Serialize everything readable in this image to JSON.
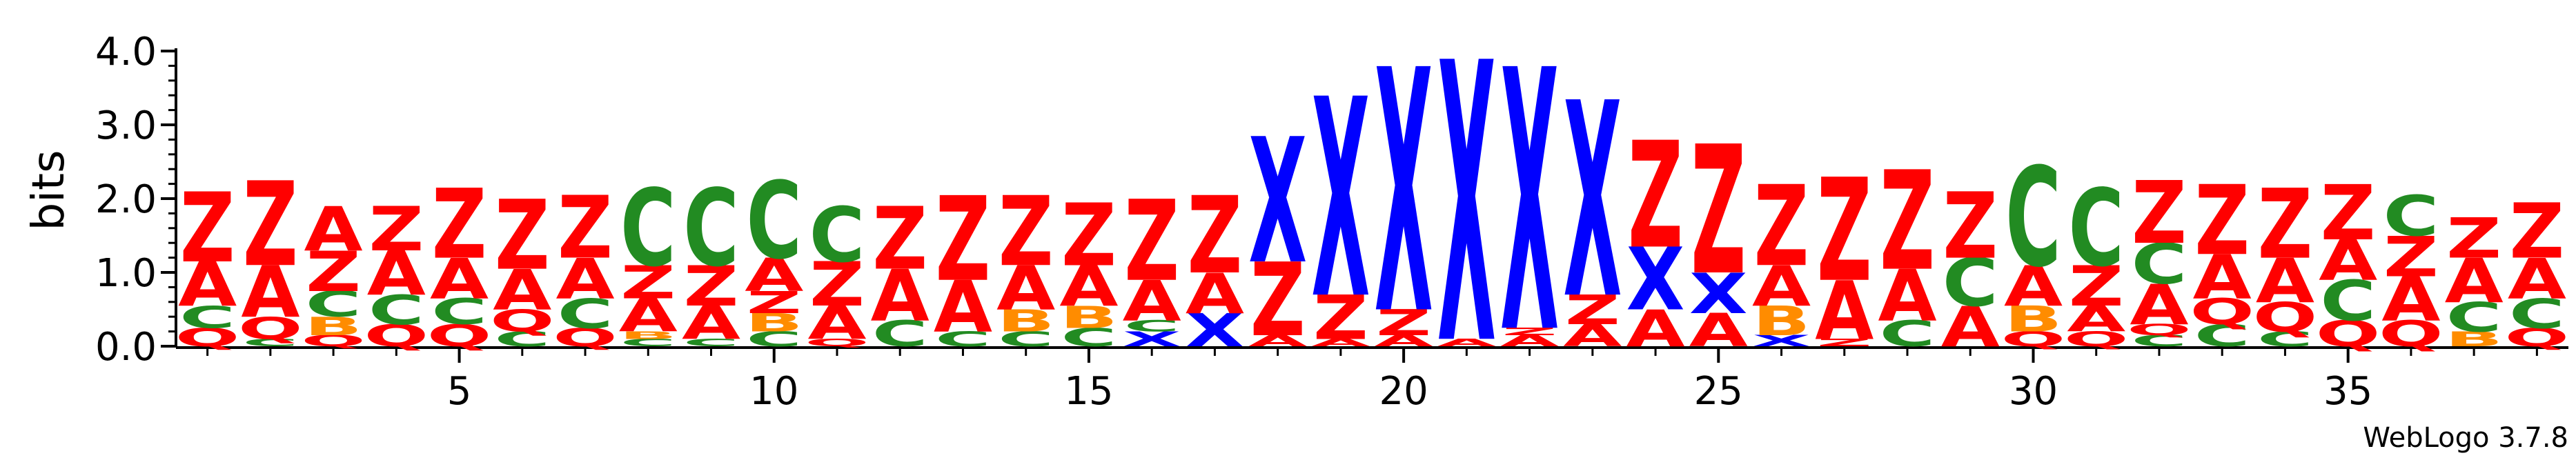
{
  "chart_data": {
    "type": "sequence-logo",
    "ylabel": "bits",
    "ylim": [
      0,
      4
    ],
    "yticks": [
      "0.0",
      "1.0",
      "2.0",
      "3.0",
      "4.0"
    ],
    "xlim": [
      1,
      38
    ],
    "xticks": [
      "5",
      "10",
      "15",
      "20",
      "25",
      "30",
      "35"
    ],
    "credit": "WebLogo 3.7.8",
    "colors": {
      "Z": "#ff0000",
      "A": "#ff0000",
      "Q": "#ff0000",
      "X": "#0000ff",
      "C": "#228b22",
      "B": "#ff8c00"
    },
    "positions": [
      {
        "pos": 1,
        "stack": [
          [
            "Q",
            0.25
          ],
          [
            "C",
            0.3
          ],
          [
            "A",
            0.6
          ],
          [
            "Z",
            0.95
          ]
        ]
      },
      {
        "pos": 2,
        "stack": [
          [
            "C",
            0.1
          ],
          [
            "Q",
            0.3
          ],
          [
            "A",
            0.7
          ],
          [
            "Z",
            1.15
          ]
        ]
      },
      {
        "pos": 3,
        "stack": [
          [
            "Q",
            0.15
          ],
          [
            "B",
            0.25
          ],
          [
            "C",
            0.35
          ],
          [
            "Z",
            0.55
          ],
          [
            "A",
            0.6
          ]
        ]
      },
      {
        "pos": 4,
        "stack": [
          [
            "Q",
            0.3
          ],
          [
            "C",
            0.4
          ],
          [
            "A",
            0.6
          ],
          [
            "Z",
            0.6
          ]
        ]
      },
      {
        "pos": 5,
        "stack": [
          [
            "Q",
            0.3
          ],
          [
            "C",
            0.35
          ],
          [
            "A",
            0.55
          ],
          [
            "Z",
            0.95
          ]
        ]
      },
      {
        "pos": 6,
        "stack": [
          [
            "C",
            0.2
          ],
          [
            "Q",
            0.3
          ],
          [
            "A",
            0.55
          ],
          [
            "Z",
            0.95
          ]
        ]
      },
      {
        "pos": 7,
        "stack": [
          [
            "Q",
            0.25
          ],
          [
            "C",
            0.4
          ],
          [
            "A",
            0.55
          ],
          [
            "Z",
            0.85
          ]
        ]
      },
      {
        "pos": 8,
        "stack": [
          [
            "C",
            0.1
          ],
          [
            "B",
            0.1
          ],
          [
            "A",
            0.45
          ],
          [
            "Z",
            0.45
          ],
          [
            "C",
            1.05
          ]
        ]
      },
      {
        "pos": 9,
        "stack": [
          [
            "C",
            0.1
          ],
          [
            "A",
            0.45
          ],
          [
            "Z",
            0.55
          ],
          [
            "C",
            1.05
          ]
        ]
      },
      {
        "pos": 10,
        "stack": [
          [
            "C",
            0.2
          ],
          [
            "B",
            0.25
          ],
          [
            "Z",
            0.3
          ],
          [
            "A",
            0.45
          ],
          [
            "C",
            1.05
          ]
        ]
      },
      {
        "pos": 11,
        "stack": [
          [
            "Q",
            0.1
          ],
          [
            "A",
            0.45
          ],
          [
            "Z",
            0.6
          ],
          [
            "C",
            0.75
          ]
        ]
      },
      {
        "pos": 12,
        "stack": [
          [
            "C",
            0.35
          ],
          [
            "A",
            0.7
          ],
          [
            "Z",
            0.85
          ]
        ]
      },
      {
        "pos": 13,
        "stack": [
          [
            "C",
            0.2
          ],
          [
            "A",
            0.7
          ],
          [
            "Z",
            1.15
          ]
        ]
      },
      {
        "pos": 14,
        "stack": [
          [
            "C",
            0.2
          ],
          [
            "B",
            0.3
          ],
          [
            "A",
            0.6
          ],
          [
            "Z",
            0.95
          ]
        ]
      },
      {
        "pos": 15,
        "stack": [
          [
            "C",
            0.25
          ],
          [
            "B",
            0.3
          ],
          [
            "A",
            0.55
          ],
          [
            "Z",
            0.85
          ]
        ]
      },
      {
        "pos": 16,
        "stack": [
          [
            "X",
            0.2
          ],
          [
            "C",
            0.15
          ],
          [
            "A",
            0.55
          ],
          [
            "Z",
            1.1
          ]
        ]
      },
      {
        "pos": 17,
        "stack": [
          [
            "X",
            0.45
          ],
          [
            "A",
            0.55
          ],
          [
            "Z",
            1.05
          ]
        ]
      },
      {
        "pos": 18,
        "stack": [
          [
            "A",
            0.15
          ],
          [
            "Z",
            1.0
          ],
          [
            "X",
            1.7
          ]
        ]
      },
      {
        "pos": 19,
        "stack": [
          [
            "A",
            0.1
          ],
          [
            "Z",
            0.6
          ],
          [
            "X",
            2.7
          ]
        ]
      },
      {
        "pos": 20,
        "stack": [
          [
            "A",
            0.15
          ],
          [
            "Z",
            0.35
          ],
          [
            "X",
            3.3
          ]
        ]
      },
      {
        "pos": 21,
        "stack": [
          [
            "A",
            0.1
          ],
          [
            "X",
            3.8
          ]
        ]
      },
      {
        "pos": 22,
        "stack": [
          [
            "A",
            0.15
          ],
          [
            "Z",
            0.1
          ],
          [
            "X",
            3.55
          ]
        ]
      },
      {
        "pos": 23,
        "stack": [
          [
            "A",
            0.3
          ],
          [
            "Z",
            0.4
          ],
          [
            "X",
            2.65
          ]
        ]
      },
      {
        "pos": 24,
        "stack": [
          [
            "A",
            0.5
          ],
          [
            "X",
            0.85
          ],
          [
            "Z",
            1.45
          ]
        ]
      },
      {
        "pos": 25,
        "stack": [
          [
            "A",
            0.45
          ],
          [
            "X",
            0.55
          ],
          [
            "Z",
            1.75
          ]
        ]
      },
      {
        "pos": 26,
        "stack": [
          [
            "X",
            0.15
          ],
          [
            "B",
            0.4
          ],
          [
            "A",
            0.55
          ],
          [
            "Z",
            1.1
          ]
        ]
      },
      {
        "pos": 27,
        "stack": [
          [
            "Z",
            0.1
          ],
          [
            "A",
            0.8
          ],
          [
            "Z",
            1.4
          ]
        ]
      },
      {
        "pos": 28,
        "stack": [
          [
            "C",
            0.35
          ],
          [
            "A",
            0.7
          ],
          [
            "Z",
            1.35
          ]
        ]
      },
      {
        "pos": 29,
        "stack": [
          [
            "A",
            0.55
          ],
          [
            "C",
            0.65
          ],
          [
            "Z",
            0.9
          ]
        ]
      },
      {
        "pos": 30,
        "stack": [
          [
            "Q",
            0.2
          ],
          [
            "B",
            0.35
          ],
          [
            "A",
            0.55
          ],
          [
            "C",
            1.35
          ]
        ]
      },
      {
        "pos": 31,
        "stack": [
          [
            "Q",
            0.2
          ],
          [
            "A",
            0.35
          ],
          [
            "Z",
            0.55
          ],
          [
            "C",
            1.05
          ]
        ]
      },
      {
        "pos": 32,
        "stack": [
          [
            "C",
            0.15
          ],
          [
            "Q",
            0.15
          ],
          [
            "A",
            0.55
          ],
          [
            "C",
            0.55
          ],
          [
            "Z",
            0.85
          ]
        ]
      },
      {
        "pos": 33,
        "stack": [
          [
            "C",
            0.3
          ],
          [
            "Q",
            0.35
          ],
          [
            "A",
            0.6
          ],
          [
            "Z",
            0.95
          ]
        ]
      },
      {
        "pos": 34,
        "stack": [
          [
            "C",
            0.2
          ],
          [
            "Q",
            0.4
          ],
          [
            "A",
            0.6
          ],
          [
            "Z",
            0.95
          ]
        ]
      },
      {
        "pos": 35,
        "stack": [
          [
            "Q",
            0.35
          ],
          [
            "C",
            0.55
          ],
          [
            "A",
            0.55
          ],
          [
            "Z",
            0.75
          ]
        ]
      },
      {
        "pos": 36,
        "stack": [
          [
            "Q",
            0.35
          ],
          [
            "A",
            0.6
          ],
          [
            "Z",
            0.55
          ],
          [
            "C",
            0.55
          ]
        ]
      },
      {
        "pos": 37,
        "stack": [
          [
            "B",
            0.2
          ],
          [
            "C",
            0.4
          ],
          [
            "A",
            0.6
          ],
          [
            "Z",
            0.55
          ]
        ]
      },
      {
        "pos": 38,
        "stack": [
          [
            "Q",
            0.25
          ],
          [
            "C",
            0.4
          ],
          [
            "A",
            0.55
          ],
          [
            "Z",
            0.75
          ]
        ]
      }
    ]
  }
}
